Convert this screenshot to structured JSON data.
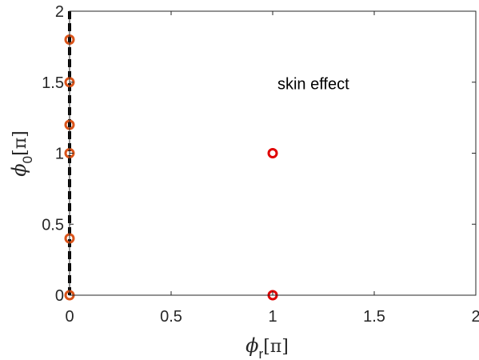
{
  "chart_data": {
    "type": "scatter",
    "title": "",
    "xlabel": {
      "symbol": "ϕ",
      "subscript": "r",
      "unit": "[π]"
    },
    "ylabel": {
      "symbol": "ϕ",
      "subscript": "0",
      "unit": "[π]"
    },
    "xlim": [
      0,
      2
    ],
    "ylim": [
      0,
      2
    ],
    "xticks": [
      0,
      0.5,
      1,
      1.5,
      2
    ],
    "yticks": [
      0,
      0.5,
      1,
      1.5,
      2
    ],
    "xtick_labels": [
      "0",
      "0.5",
      "1",
      "1.5",
      "2"
    ],
    "ytick_labels": [
      "0",
      "0.5",
      "1",
      "1.5",
      "2"
    ],
    "grid": false,
    "annotations": [
      {
        "text": "skin effect",
        "x": 1.2,
        "y": 1.45
      }
    ],
    "dashed_line": {
      "x": 0,
      "y0": 0,
      "y1": 2,
      "color": "#000000"
    },
    "series": [
      {
        "color": "#d95319",
        "points": [
          [
            0,
            1.8
          ],
          [
            0,
            1.5
          ],
          [
            0,
            1.2
          ],
          [
            0,
            1.0
          ],
          [
            0,
            0.4
          ],
          [
            0,
            0
          ]
        ]
      },
      {
        "color": "#e00000",
        "points": [
          [
            1,
            1
          ],
          [
            1,
            0
          ]
        ]
      }
    ]
  }
}
